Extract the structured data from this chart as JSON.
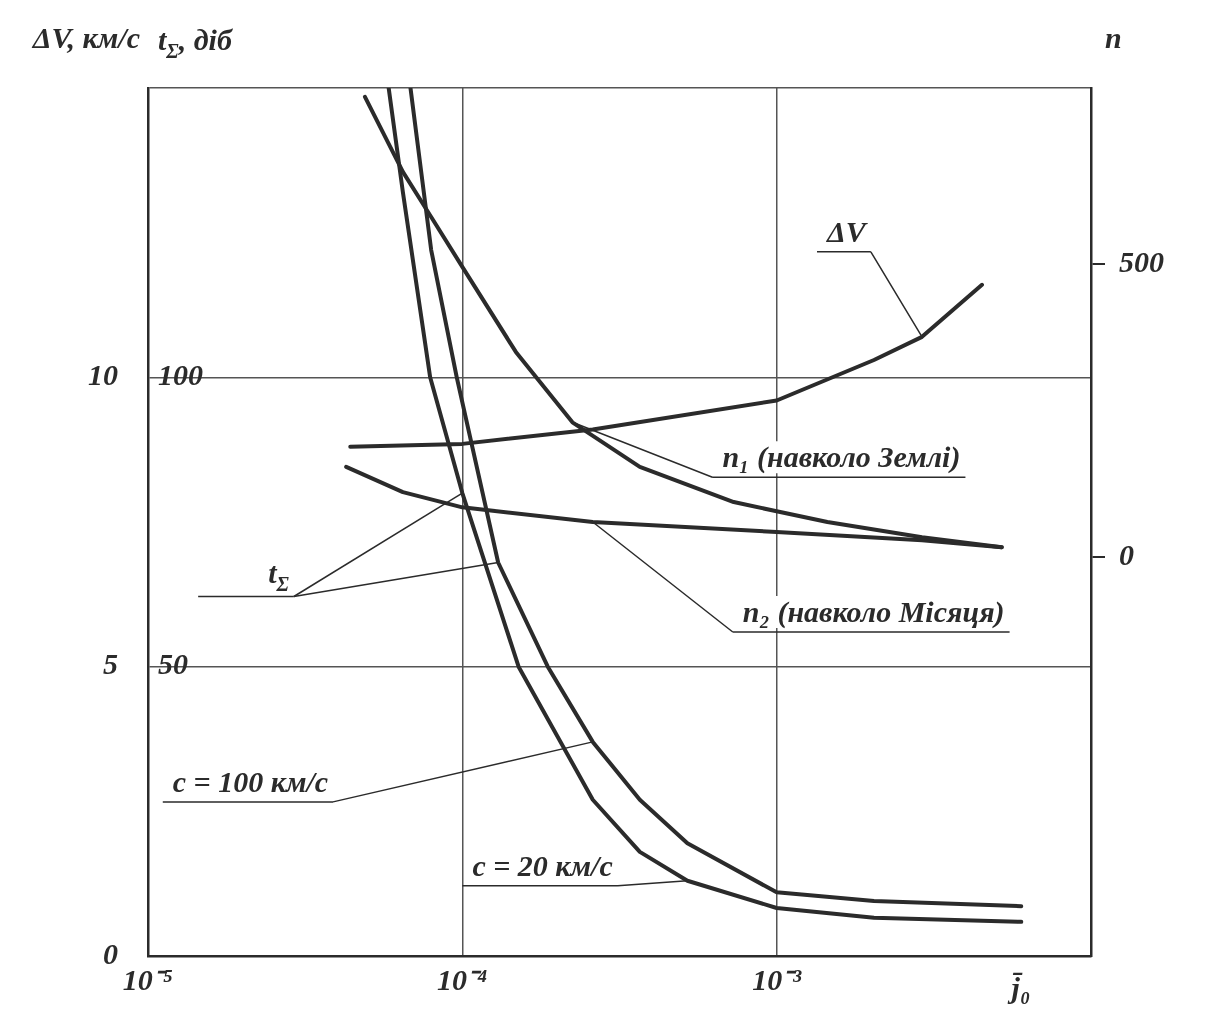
{
  "chart_data": {
    "type": "line",
    "xlabel": "j̄₀",
    "ylabel": "ΔV, км/с",
    "y2label": "t$_{Σ}$, діб",
    "y3label": "n",
    "log": "x",
    "grid": true,
    "marker": "none",
    "line_style": "solid",
    "xlim": [
      1e-05,
      0.01
    ],
    "xticks": [
      {
        "value": 1e-05,
        "label": "10⁻⁵"
      },
      {
        "value": 0.0001,
        "label": "10⁻⁴"
      },
      {
        "value": 0.001,
        "label": "10⁻³"
      }
    ],
    "ylim": [
      0,
      15
    ],
    "yticks": [
      0,
      5,
      10,
      {
        "value": 15,
        "label": null
      }
    ],
    "y2lim": [
      0,
      150
    ],
    "y2ticks": [
      50,
      100
    ],
    "y3lim": [
      -680,
      800
    ],
    "y3ticks": [
      0,
      500
    ],
    "annotations": [
      {
        "text": "t$_{Σ}$",
        "x": 0.00013,
        "y": 6.8
      }
    ],
    "series": [
      {
        "name": "ΔV",
        "color": "#2b2b2b",
        "x": [
          4.4e-05,
          0.0001,
          0.00026,
          0.001,
          0.00204,
          0.0029,
          0.0045
        ],
        "values": [
          8.8,
          8.85,
          9.1,
          9.6,
          10.3,
          10.7,
          11.6
        ]
      },
      {
        "name": "n₁ (навколо Землі)",
        "color": "#2b2b2b",
        "axis": "y3",
        "x": [
          4.9e-05,
          6.47e-05,
          7.96e-05,
          0.0001,
          0.000148,
          0.000224,
          0.000367,
          0.00073,
          0.00145,
          0.0029,
          0.0052
        ],
        "values": [
          785,
          657,
          580,
          495,
          350,
          230,
          154,
          94,
          60,
          34,
          17
        ]
      },
      {
        "name": "n₂ (навколо Місяця)",
        "color": "#2b2b2b",
        "axis": "y3",
        "x": [
          4.27e-05,
          6.47e-05,
          0.0001,
          0.00026,
          0.001,
          0.0029,
          0.0052
        ],
        "values": [
          154,
          111,
          85,
          60,
          43,
          29,
          17
        ]
      },
      {
        "name": "c = 100 км/с",
        "color": "#2b2b2b",
        "axis": "y2",
        "x": [
          6.84e-05,
          7.96e-05,
          9.6e-05,
          0.00013,
          0.000187,
          0.00026,
          0.000367,
          0.00052,
          0.001,
          0.00204,
          0.006
        ],
        "values": [
          150,
          122,
          100,
          68,
          50,
          37,
          27,
          19.5,
          11,
          9.5,
          8.6
        ]
      },
      {
        "name": "c = 20 км/с",
        "color": "#2b2b2b",
        "axis": "y2",
        "x": [
          5.83e-05,
          6.47e-05,
          7.9e-05,
          0.0001,
          0.000151,
          0.00026,
          0.000367,
          0.00052,
          0.001,
          0.00204,
          0.006
        ],
        "values": [
          150,
          132,
          100,
          80,
          50,
          27,
          18,
          13,
          8.3,
          6.6,
          5.9
        ]
      }
    ]
  }
}
